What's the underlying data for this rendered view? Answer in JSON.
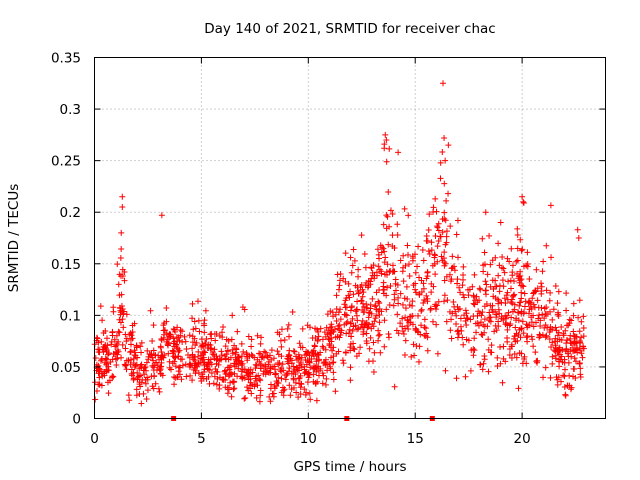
{
  "chart_data": {
    "type": "scatter",
    "title": "Day 140 of 2021, SRMTID for receiver chac",
    "xlabel": "GPS time / hours",
    "ylabel": "SRMTID / TECUs",
    "xlim": [
      0,
      23.9
    ],
    "ylim": [
      0,
      0.35
    ],
    "grid": true,
    "marker": "plus",
    "color": "#ff0000",
    "x_ticks": [
      0,
      5,
      10,
      15,
      20
    ],
    "x_tick_labels": [
      "0",
      "5",
      "10",
      "15",
      "20"
    ],
    "y_ticks": [
      0,
      0.05,
      0.1,
      0.15,
      0.2,
      0.25,
      0.3,
      0.35
    ],
    "y_tick_labels": [
      "0",
      "0.05",
      "0.1",
      "0.15",
      "0.2",
      "0.25",
      "0.3",
      "0.35"
    ],
    "baseline_markers_x": [
      3.7,
      11.8,
      15.8
    ],
    "profile": [
      [
        0.0,
        0.055,
        0.018
      ],
      [
        0.5,
        0.055,
        0.015
      ],
      [
        1.0,
        0.07,
        0.02
      ],
      [
        1.3,
        0.12,
        0.03
      ],
      [
        1.6,
        0.06,
        0.02
      ],
      [
        2.0,
        0.045,
        0.015
      ],
      [
        2.5,
        0.045,
        0.015
      ],
      [
        3.0,
        0.05,
        0.015
      ],
      [
        3.3,
        0.08,
        0.015
      ],
      [
        3.8,
        0.065,
        0.015
      ],
      [
        4.5,
        0.06,
        0.015
      ],
      [
        5.0,
        0.065,
        0.015
      ],
      [
        6.0,
        0.055,
        0.015
      ],
      [
        7.0,
        0.05,
        0.015
      ],
      [
        8.0,
        0.045,
        0.015
      ],
      [
        9.0,
        0.045,
        0.015
      ],
      [
        10.0,
        0.05,
        0.015
      ],
      [
        10.8,
        0.065,
        0.02
      ],
      [
        11.5,
        0.09,
        0.025
      ],
      [
        12.5,
        0.1,
        0.025
      ],
      [
        13.3,
        0.12,
        0.03
      ],
      [
        13.8,
        0.17,
        0.045
      ],
      [
        14.3,
        0.12,
        0.03
      ],
      [
        15.0,
        0.11,
        0.03
      ],
      [
        15.8,
        0.13,
        0.035
      ],
      [
        16.3,
        0.17,
        0.045
      ],
      [
        17.0,
        0.1,
        0.03
      ],
      [
        18.0,
        0.11,
        0.03
      ],
      [
        19.0,
        0.1,
        0.03
      ],
      [
        20.0,
        0.11,
        0.03
      ],
      [
        21.0,
        0.1,
        0.03
      ],
      [
        22.0,
        0.06,
        0.02
      ],
      [
        22.8,
        0.07,
        0.02
      ]
    ],
    "extremes": [
      {
        "x": 1.3,
        "y": 0.215
      },
      {
        "x": 1.3,
        "y": 0.205
      },
      {
        "x": 1.25,
        "y": 0.18
      },
      {
        "x": 3.15,
        "y": 0.197
      },
      {
        "x": 13.6,
        "y": 0.275
      },
      {
        "x": 13.65,
        "y": 0.27
      },
      {
        "x": 13.55,
        "y": 0.262
      },
      {
        "x": 14.2,
        "y": 0.258
      },
      {
        "x": 16.3,
        "y": 0.325
      },
      {
        "x": 16.35,
        "y": 0.272
      },
      {
        "x": 16.55,
        "y": 0.265
      },
      {
        "x": 16.4,
        "y": 0.25
      },
      {
        "x": 20.0,
        "y": 0.215
      },
      {
        "x": 20.05,
        "y": 0.21
      },
      {
        "x": 22.6,
        "y": 0.183
      },
      {
        "x": 22.65,
        "y": 0.175
      },
      {
        "x": 18.3,
        "y": 0.2
      },
      {
        "x": 19.0,
        "y": 0.19
      }
    ]
  }
}
